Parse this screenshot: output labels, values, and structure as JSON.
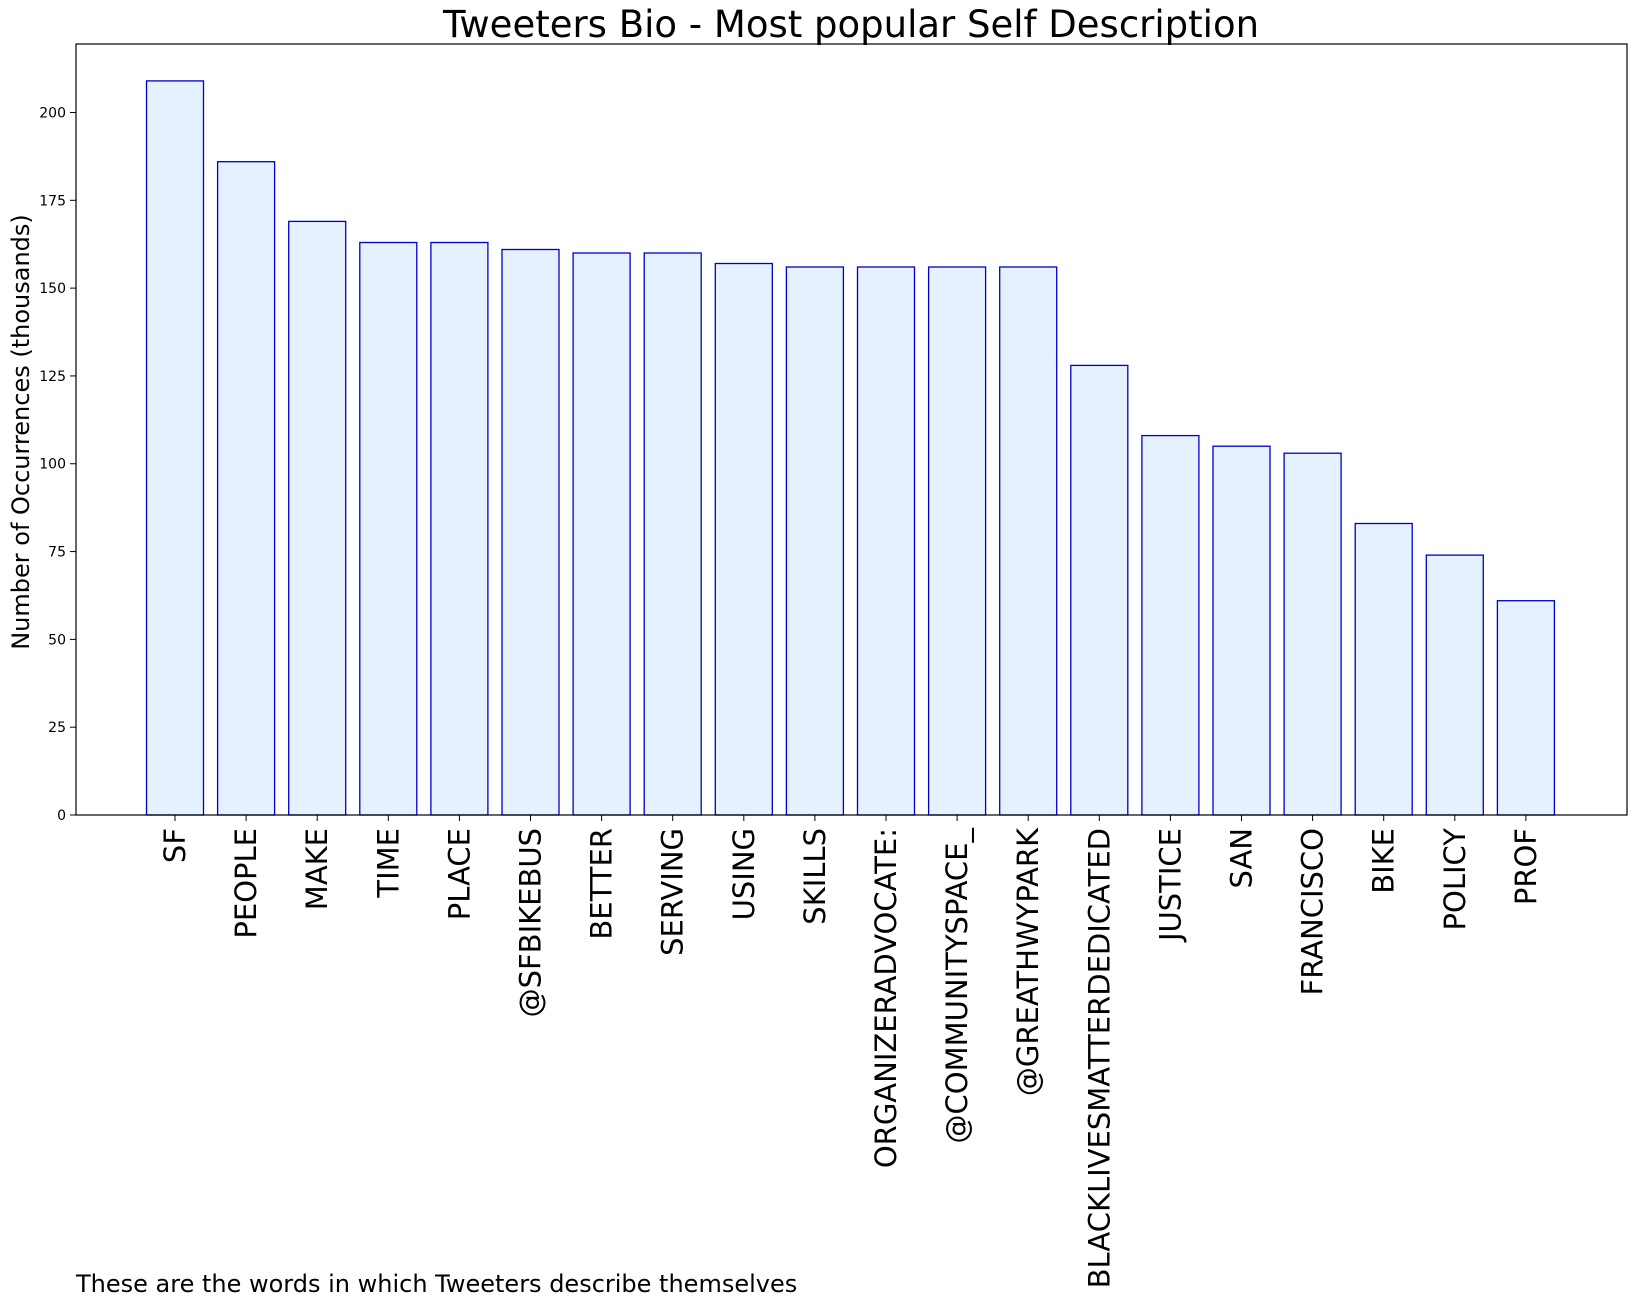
{
  "chart_data": {
    "type": "bar",
    "title": "Tweeters Bio - Most popular Self Description",
    "xlabel": "",
    "ylabel": "Number of Occurrences (thousands)",
    "caption": "These are the words in which Tweeters describe themselves",
    "categories": [
      "SF",
      "PEOPLE",
      "MAKE",
      "TIME",
      "PLACE",
      "@SFBIKEBUS",
      "BETTER",
      "SERVING",
      "USING",
      "SKILLS",
      "ORGANIZERADVOCATE:",
      "@COMMUNITYSPACE_",
      "@GREATHWYPARK",
      "BLACKLIVESMATTERDEDICATED",
      "JUSTICE",
      "SAN",
      "FRANCISCO",
      "BIKE",
      "POLICY",
      "PROF"
    ],
    "values": [
      209,
      186,
      169,
      163,
      163,
      161,
      160,
      160,
      157,
      156,
      156,
      156,
      156,
      128,
      108,
      105,
      103,
      83,
      74,
      61
    ],
    "ylim": [
      0,
      219.5
    ],
    "yticks": [
      0,
      25,
      50,
      75,
      100,
      125,
      150,
      175,
      200
    ],
    "grid": false,
    "colors": {
      "bar_fill": "#e5f1fe",
      "bar_edge": "#0000cc"
    }
  }
}
